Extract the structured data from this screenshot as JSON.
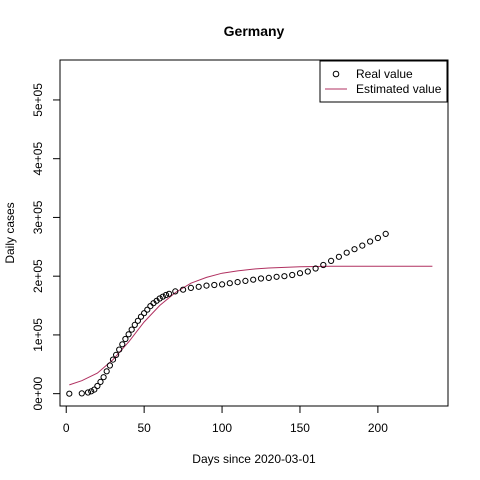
{
  "chart_data": {
    "type": "scatter",
    "title": "Germany",
    "xlabel": "Days since 2020-03-01",
    "ylabel": "Daily cases",
    "xlim": [
      -4,
      245
    ],
    "ylim": [
      -21000,
      568000
    ],
    "x_ticks": [
      0,
      50,
      100,
      150,
      200
    ],
    "x_tick_labels": [
      "0",
      "50",
      "100",
      "150",
      "200"
    ],
    "y_ticks": [
      0,
      100000,
      200000,
      300000,
      400000,
      500000
    ],
    "y_tick_labels": [
      "0e+00",
      "1e+05",
      "2e+05",
      "3e+05",
      "4e+05",
      "5e+05"
    ],
    "grid": false,
    "legend": {
      "position": "top-right",
      "entries": [
        "Real value",
        "Estimated value"
      ]
    },
    "series": [
      {
        "name": "Real value",
        "style": "points",
        "color": "#000000",
        "x": [
          2,
          10,
          14,
          16,
          18,
          20,
          22,
          24,
          26,
          28,
          30,
          32,
          34,
          36,
          38,
          40,
          42,
          44,
          46,
          48,
          50,
          52,
          54,
          56,
          58,
          60,
          62,
          64,
          66,
          70,
          75,
          80,
          85,
          90,
          95,
          100,
          105,
          110,
          115,
          120,
          125,
          130,
          135,
          140,
          145,
          150,
          155,
          160,
          165,
          170,
          175,
          180,
          185,
          190,
          195,
          200,
          205
        ],
        "y": [
          0,
          500,
          2000,
          4000,
          7000,
          13000,
          20000,
          28000,
          38000,
          48000,
          58000,
          66000,
          75000,
          84000,
          93000,
          101000,
          109000,
          117000,
          124000,
          131000,
          137000,
          143000,
          149000,
          154000,
          158000,
          162000,
          165000,
          168000,
          170000,
          174000,
          177000,
          180000,
          182000,
          184000,
          185000,
          186000,
          188000,
          190000,
          192000,
          194000,
          196000,
          197000,
          199000,
          200000,
          202000,
          205000,
          208000,
          213000,
          219000,
          226000,
          233000,
          240000,
          246000,
          252000,
          259000,
          265000,
          272000
        ]
      },
      {
        "name": "Estimated value",
        "style": "line",
        "color": "#b03060",
        "x": [
          2,
          10,
          20,
          30,
          40,
          50,
          60,
          70,
          80,
          90,
          100,
          110,
          120,
          130,
          140,
          150,
          160,
          170,
          180,
          190,
          200,
          210,
          220,
          235
        ],
        "y": [
          15000,
          22000,
          35000,
          58000,
          88000,
          122000,
          150000,
          172000,
          188000,
          198000,
          205000,
          209000,
          212000,
          214000,
          215000,
          216000,
          216500,
          217000,
          217000,
          217000,
          217000,
          217000,
          217000,
          217000
        ]
      }
    ]
  }
}
